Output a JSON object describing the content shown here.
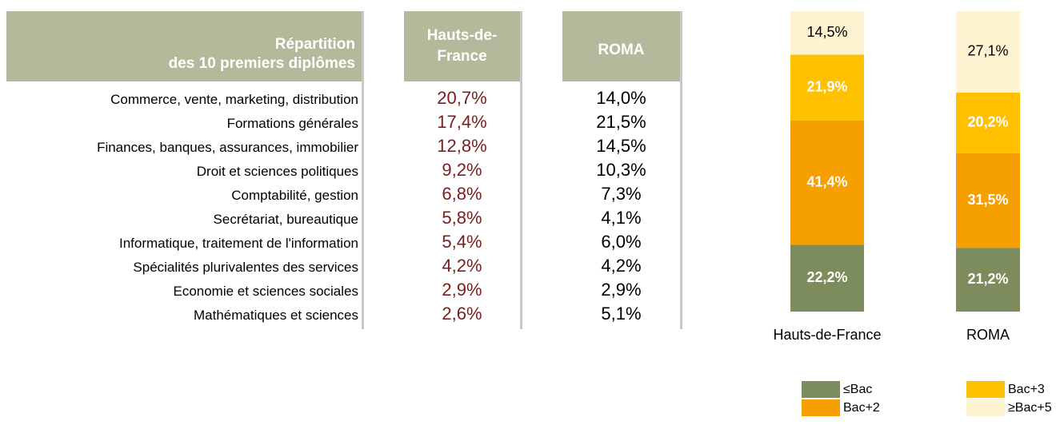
{
  "table": {
    "header": [
      "Répartition\ndes 10 premiers diplômes",
      "Hauts-de-\nFrance",
      "ROMA"
    ],
    "rows": [
      [
        "Commerce, vente, marketing, distribution",
        "20,7%",
        "14,0%"
      ],
      [
        "Formations générales",
        "17,4%",
        "21,5%"
      ],
      [
        "Finances, banques, assurances, immobilier",
        "12,8%",
        "14,5%"
      ],
      [
        "Droit et sciences politiques",
        "9,2%",
        "10,3%"
      ],
      [
        "Comptabilité, gestion",
        "6,8%",
        "7,3%"
      ],
      [
        "Secrétariat, bureautique",
        "5,8%",
        "4,1%"
      ],
      [
        "Informatique, traitement de l'information",
        "5,4%",
        "6,0%"
      ],
      [
        "Spécialités plurivalentes des services",
        "4,2%",
        "4,2%"
      ],
      [
        "Economie et sciences sociales",
        "2,9%",
        "2,9%"
      ],
      [
        "Mathématiques et sciences",
        "2,6%",
        "5,1%"
      ]
    ]
  },
  "chart_data": {
    "type": "stacked_bar",
    "categories": [
      "Hauts-de-France",
      "ROMA"
    ],
    "ylim": [
      0,
      100
    ],
    "series": [
      {
        "name": "≤Bac",
        "color": "#7d8c5c",
        "label_color": "#ffffff",
        "values": [
          22.2,
          21.2
        ],
        "value_labels": [
          "22,2%",
          "21,2%"
        ]
      },
      {
        "name": "Bac+2",
        "color": "#f59f00",
        "label_color": "#ffffff",
        "values": [
          41.4,
          31.5
        ],
        "value_labels": [
          "41,4%",
          "31,5%"
        ]
      },
      {
        "name": "Bac+3",
        "color": "#ffc000",
        "label_color": "#ffffff",
        "values": [
          21.9,
          20.2
        ],
        "value_labels": [
          "21,9%",
          "20,2%"
        ]
      },
      {
        "name": "≥Bac+5",
        "color": "#fdf3d0",
        "label_color": "#000000",
        "values": [
          14.5,
          27.1
        ],
        "value_labels": [
          "14,5%",
          "27,1%"
        ]
      }
    ]
  }
}
